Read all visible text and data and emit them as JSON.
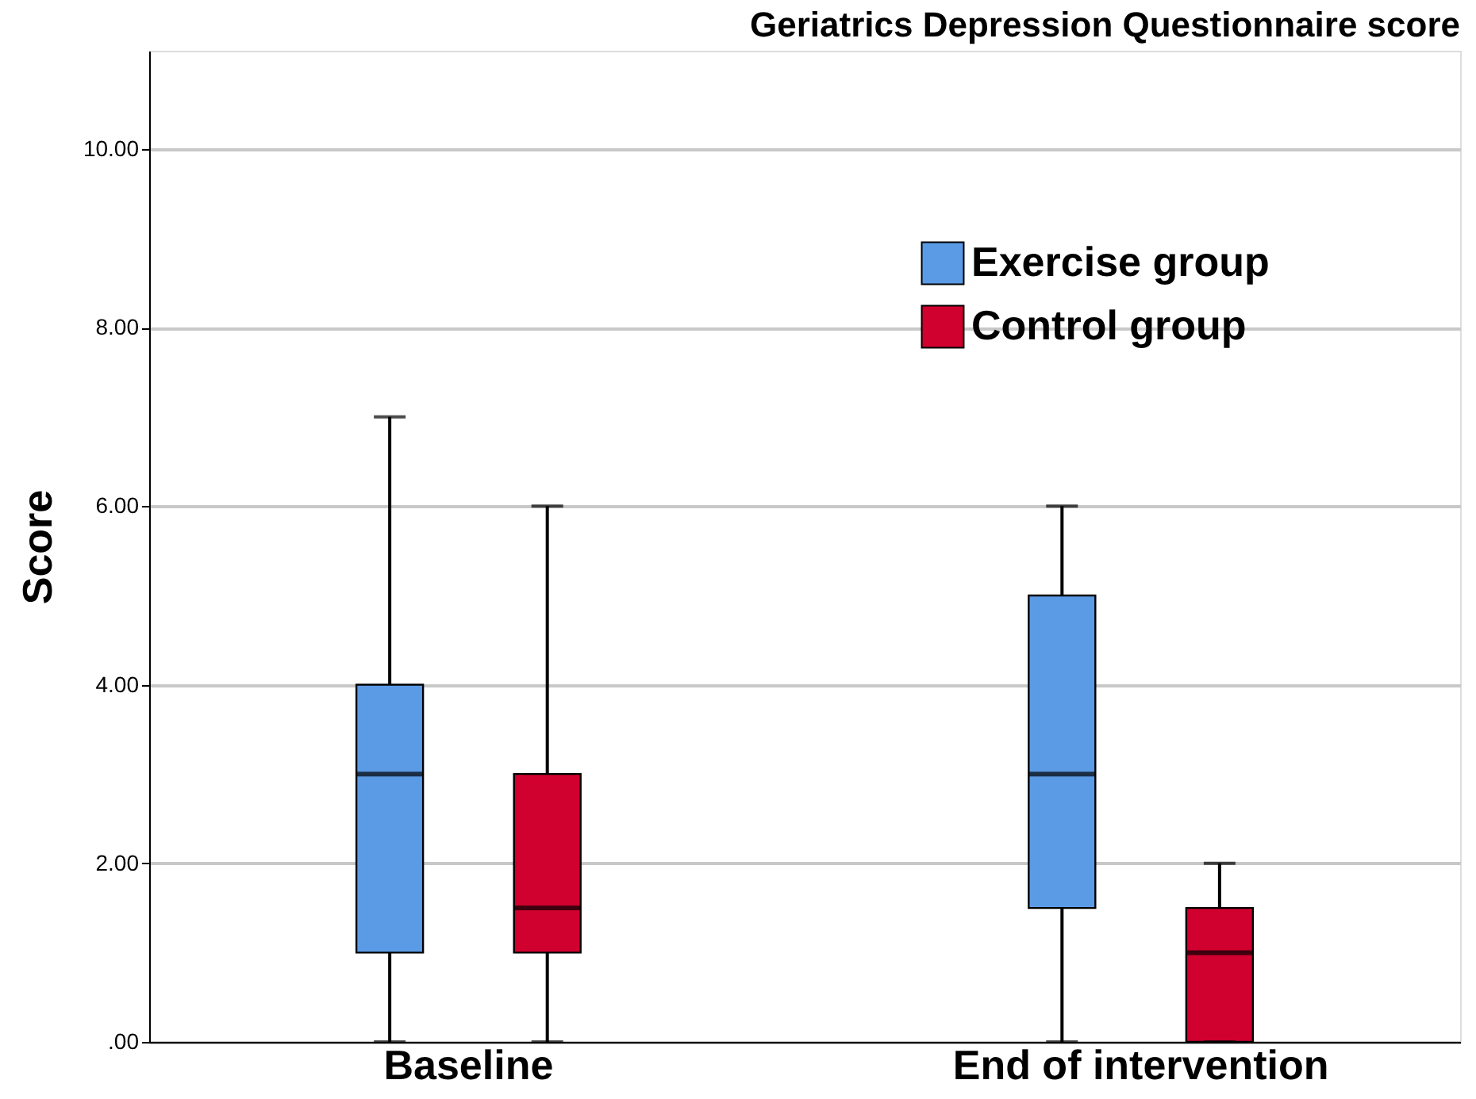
{
  "chart_data": {
    "type": "box",
    "title": "Geriatrics Depression Questionnaire score",
    "ylabel": "Score",
    "categories": [
      "Baseline",
      "End of intervention"
    ],
    "series": [
      {
        "name": "Exercise group",
        "color": "#5b9be6",
        "boxes": [
          {
            "low": 0,
            "q1": 1,
            "median": 3,
            "q3": 4,
            "high": 7
          },
          {
            "low": 0,
            "q1": 1.5,
            "median": 3,
            "q3": 5,
            "high": 6
          }
        ]
      },
      {
        "name": "Control group",
        "color": "#d0002f",
        "boxes": [
          {
            "low": 0,
            "q1": 1,
            "median": 1.5,
            "q3": 3,
            "high": 6
          },
          {
            "low": 0,
            "q1": 0,
            "median": 1,
            "q3": 1.5,
            "high": 2
          }
        ]
      }
    ],
    "ylim": [
      0,
      11.1
    ],
    "yticks": [
      {
        "value": 0,
        "label": ".00"
      },
      {
        "value": 2,
        "label": "2.00"
      },
      {
        "value": 4,
        "label": "4.00"
      },
      {
        "value": 6,
        "label": "6.00"
      },
      {
        "value": 8,
        "label": "8.00"
      },
      {
        "value": 10,
        "label": "10.00"
      }
    ],
    "grid": "y",
    "legend": "top right"
  }
}
